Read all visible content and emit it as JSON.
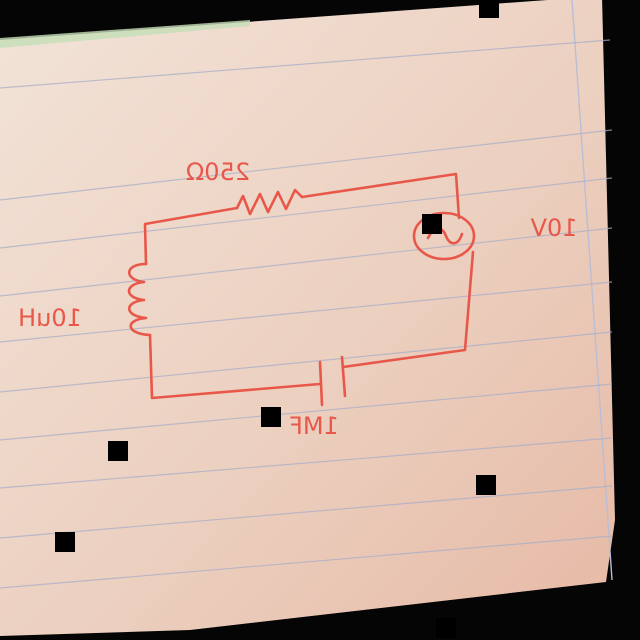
{
  "diagram": {
    "kind": "hand-drawn RLC circuit on lined paper (mirrored)",
    "ink_color": "#e8584a",
    "paper_color": "#eccdbd",
    "components": [
      {
        "id": "resistor",
        "type": "resistor",
        "label": "250Ω"
      },
      {
        "id": "source",
        "type": "ac-voltage-source",
        "label": "10V"
      },
      {
        "id": "inductor",
        "type": "inductor",
        "label": "10uH"
      },
      {
        "id": "capacitor",
        "type": "capacitor",
        "label": "1MF"
      }
    ]
  }
}
